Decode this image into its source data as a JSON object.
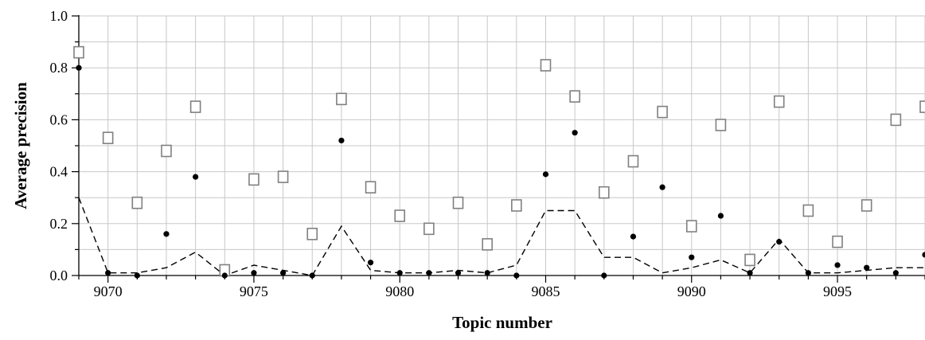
{
  "chart_data": {
    "type": "scatter",
    "title": "",
    "xlabel": "Topic number",
    "ylabel": "Average precision",
    "xlim": [
      9069,
      9098
    ],
    "ylim": [
      0,
      1.0
    ],
    "grid": true,
    "legend": "none",
    "x_ticks": [
      9070,
      9075,
      9080,
      9085,
      9090,
      9095
    ],
    "y_ticks": [
      0.0,
      0.2,
      0.4,
      0.6,
      0.8,
      1.0
    ],
    "y_tick_labels": [
      "0.0",
      "0.2",
      "0.4",
      "0.6",
      "0.8",
      "1.0"
    ],
    "x": [
      9069,
      9070,
      9071,
      9072,
      9073,
      9074,
      9075,
      9076,
      9077,
      9078,
      9079,
      9080,
      9081,
      9082,
      9083,
      9084,
      9085,
      9086,
      9087,
      9088,
      9089,
      9090,
      9091,
      9092,
      9093,
      9094,
      9095,
      9096,
      9097,
      9098
    ],
    "series": [
      {
        "style": "open-square",
        "color": "#808080",
        "values": [
          0.86,
          0.53,
          0.28,
          0.48,
          0.65,
          0.02,
          0.37,
          0.38,
          0.16,
          0.68,
          0.34,
          0.23,
          0.18,
          0.28,
          0.12,
          0.27,
          0.81,
          0.69,
          0.32,
          0.44,
          0.63,
          0.19,
          0.58,
          0.06,
          0.67,
          0.25,
          0.13,
          0.27,
          0.6,
          0.65
        ]
      },
      {
        "style": "filled-circle",
        "color": "#000000",
        "values": [
          0.8,
          0.01,
          0.0,
          0.16,
          0.38,
          0.0,
          0.01,
          0.01,
          0.0,
          0.52,
          0.05,
          0.01,
          0.01,
          0.01,
          0.01,
          0.0,
          0.39,
          0.55,
          0.0,
          0.15,
          0.34,
          0.07,
          0.23,
          0.01,
          0.13,
          0.01,
          0.04,
          0.03,
          0.01,
          0.08
        ]
      },
      {
        "style": "dashed-line",
        "color": "#000000",
        "values": [
          0.3,
          0.01,
          0.01,
          0.03,
          0.09,
          0.0,
          0.04,
          0.02,
          0.0,
          0.19,
          0.02,
          0.01,
          0.01,
          0.02,
          0.01,
          0.04,
          0.25,
          0.25,
          0.07,
          0.07,
          0.01,
          0.03,
          0.06,
          0.01,
          0.14,
          0.01,
          0.01,
          0.02,
          0.03,
          0.03
        ]
      }
    ]
  }
}
